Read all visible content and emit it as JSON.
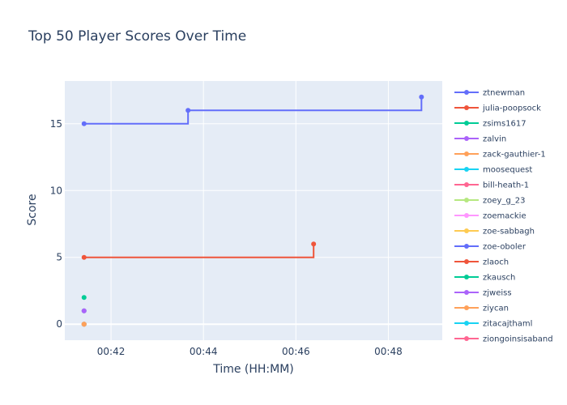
{
  "chart_data": {
    "type": "line",
    "line_shape": "step",
    "title": "Top 50 Player Scores Over Time",
    "xlabel": "Time (HH:MM)",
    "ylabel": "Score",
    "xlim": [
      "00:41:00",
      "00:49:10"
    ],
    "ylim": [
      -1.2,
      18.2
    ],
    "x_ticks": [
      "00:42",
      "00:44",
      "00:46",
      "00:48"
    ],
    "y_ticks": [
      0,
      5,
      10,
      15
    ],
    "grid": true,
    "legend_position": "right",
    "background": "#e5ecf6",
    "series": [
      {
        "name": "ztnewman",
        "color": "#636efa",
        "points": [
          {
            "x": "00:41:25",
            "y": 15
          },
          {
            "x": "00:43:40",
            "y": 16
          },
          {
            "x": "00:48:43",
            "y": 17
          }
        ]
      },
      {
        "name": "julia-poopsock",
        "color": "#ef553b",
        "points": [
          {
            "x": "00:41:25",
            "y": 5
          },
          {
            "x": "00:46:23",
            "y": 6
          }
        ]
      },
      {
        "name": "zsims1617",
        "color": "#00cc96",
        "points": [
          {
            "x": "00:41:25",
            "y": 2
          }
        ]
      },
      {
        "name": "zalvin",
        "color": "#ab63fa",
        "points": [
          {
            "x": "00:41:25",
            "y": 1
          }
        ]
      },
      {
        "name": "zack-gauthier-1",
        "color": "#ffa15a",
        "points": [
          {
            "x": "00:41:25",
            "y": 0
          }
        ]
      },
      {
        "name": "moosequest",
        "color": "#19d3f3",
        "points": [
          {
            "x": "00:41:25",
            "y": 1
          }
        ]
      },
      {
        "name": "bill-heath-1",
        "color": "#ff6692",
        "points": [
          {
            "x": "00:41:25",
            "y": 1
          }
        ]
      },
      {
        "name": "zoey_g_23",
        "color": "#b6e880",
        "points": [
          {
            "x": "00:41:25",
            "y": 0
          }
        ]
      },
      {
        "name": "zoemackie",
        "color": "#ff97ff",
        "points": [
          {
            "x": "00:41:25",
            "y": 0
          }
        ]
      },
      {
        "name": "zoe-sabbagh",
        "color": "#fecb52",
        "points": [
          {
            "x": "00:41:25",
            "y": 0
          }
        ]
      },
      {
        "name": "zoe-oboler",
        "color": "#636efa",
        "points": [
          {
            "x": "00:41:25",
            "y": 0
          }
        ]
      },
      {
        "name": "zlaoch",
        "color": "#ef553b",
        "points": [
          {
            "x": "00:41:25",
            "y": 0
          }
        ]
      },
      {
        "name": "zkausch",
        "color": "#00cc96",
        "points": [
          {
            "x": "00:41:25",
            "y": 0
          }
        ]
      },
      {
        "name": "zjweiss",
        "color": "#ab63fa",
        "points": [
          {
            "x": "00:41:25",
            "y": 0
          }
        ]
      },
      {
        "name": "ziycan",
        "color": "#ffa15a",
        "points": [
          {
            "x": "00:41:25",
            "y": 0
          }
        ]
      },
      {
        "name": "zitacajthaml",
        "color": "#19d3f3",
        "points": [
          {
            "x": "00:41:25",
            "y": 0
          }
        ]
      },
      {
        "name": "ziongoinsisaband",
        "color": "#ff6692",
        "points": [
          {
            "x": "00:41:25",
            "y": 0
          }
        ]
      }
    ]
  }
}
